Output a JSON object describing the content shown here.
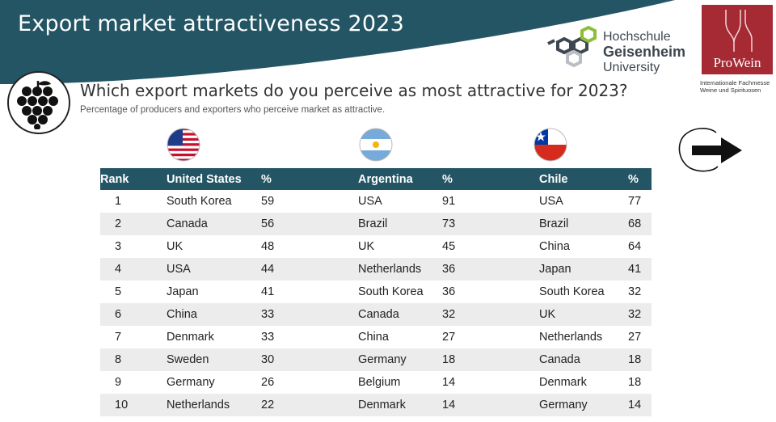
{
  "header": {
    "title": "Export market attractiveness 2023",
    "question": "Which export markets do you perceive as most attractive for 2023?",
    "subtitle": "Percentage of producers and exporters who perceive market as attractive."
  },
  "logos": {
    "university": {
      "line1": "Hochschule",
      "line2": "Geisenheim",
      "line3": "University"
    },
    "prowein": {
      "name": "ProWein",
      "tagline_line1": "Internationale Fachmesse",
      "tagline_line2": "Weine und Spirituosen"
    }
  },
  "icons": {
    "grapes": "grapes-icon",
    "next": "arrow-right-icon",
    "flags": [
      "flag-united-states-icon",
      "flag-argentina-icon",
      "flag-chile-icon"
    ]
  },
  "colors": {
    "banner": "#245564",
    "header_row": "#245564",
    "alt_row": "#ececec",
    "prowein": "#a52a34"
  },
  "table": {
    "headers": {
      "rank": "Rank",
      "us": "United States",
      "us_pct": "%",
      "ar": "Argentina",
      "ar_pct": "%",
      "cl": "Chile",
      "cl_pct": "%"
    },
    "rows": [
      {
        "rank": "1",
        "us": "South Korea",
        "us_pct": "59",
        "ar": "USA",
        "ar_pct": "91",
        "cl": "USA",
        "cl_pct": "77"
      },
      {
        "rank": "2",
        "us": "Canada",
        "us_pct": "56",
        "ar": "Brazil",
        "ar_pct": "73",
        "cl": "Brazil",
        "cl_pct": "68"
      },
      {
        "rank": "3",
        "us": "UK",
        "us_pct": "48",
        "ar": "UK",
        "ar_pct": "45",
        "cl": "China",
        "cl_pct": "64"
      },
      {
        "rank": "4",
        "us": "USA",
        "us_pct": "44",
        "ar": "Netherlands",
        "ar_pct": "36",
        "cl": "Japan",
        "cl_pct": "41"
      },
      {
        "rank": "5",
        "us": "Japan",
        "us_pct": "41",
        "ar": "South Korea",
        "ar_pct": "36",
        "cl": "South Korea",
        "cl_pct": "32"
      },
      {
        "rank": "6",
        "us": "China",
        "us_pct": "33",
        "ar": "Canada",
        "ar_pct": "32",
        "cl": "UK",
        "cl_pct": "32"
      },
      {
        "rank": "7",
        "us": "Denmark",
        "us_pct": "33",
        "ar": "China",
        "ar_pct": "27",
        "cl": "Netherlands",
        "cl_pct": "27"
      },
      {
        "rank": "8",
        "us": "Sweden",
        "us_pct": "30",
        "ar": "Germany",
        "ar_pct": "18",
        "cl": "Canada",
        "cl_pct": "18"
      },
      {
        "rank": "9",
        "us": "Germany",
        "us_pct": "26",
        "ar": "Belgium",
        "ar_pct": "14",
        "cl": "Denmark",
        "cl_pct": "18"
      },
      {
        "rank": "10",
        "us": "Netherlands",
        "us_pct": "22",
        "ar": "Denmark",
        "ar_pct": "14",
        "cl": "Germany",
        "cl_pct": "14"
      }
    ]
  }
}
